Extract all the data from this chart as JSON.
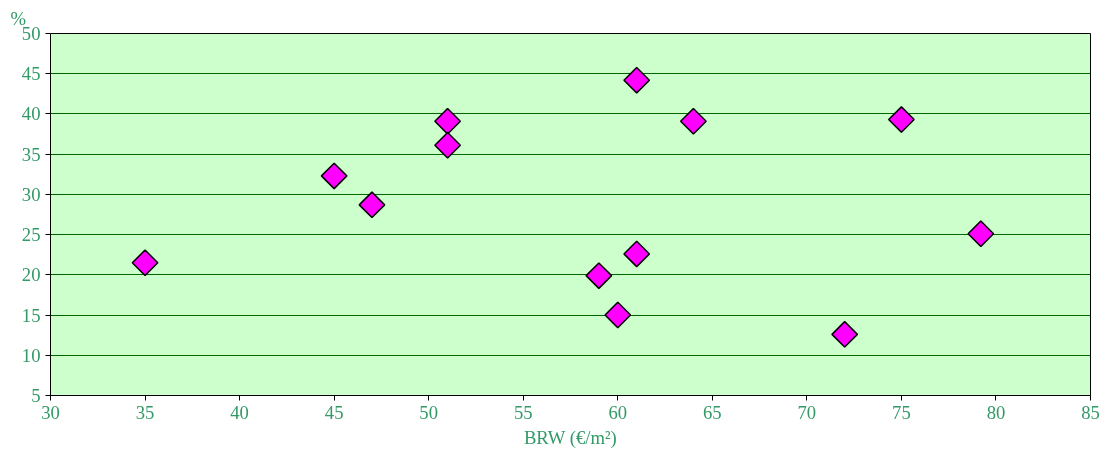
{
  "chart_data": {
    "type": "scatter",
    "xlabel": "BRW (€/m²)",
    "ylabel": "%",
    "x": [
      35,
      45,
      47,
      51,
      51,
      59,
      60,
      61,
      61,
      64,
      72,
      75,
      79.2
    ],
    "series": [
      {
        "color": "#ff00ff",
        "values": [
          21.5,
          32.3,
          28.7,
          39.1,
          36.1,
          19.9,
          15,
          22.6,
          44.2,
          39.1,
          12.6,
          39.3,
          25.1
        ]
      }
    ],
    "xlim": [
      30,
      85
    ],
    "xticks": [
      30,
      35,
      40,
      45,
      50,
      55,
      60,
      65,
      70,
      75,
      80,
      85
    ],
    "ylim": [
      5,
      50
    ],
    "yticks": [
      5,
      10,
      15,
      20,
      25,
      30,
      35,
      40,
      45,
      50
    ],
    "grid": "y",
    "marker": "diamond"
  }
}
